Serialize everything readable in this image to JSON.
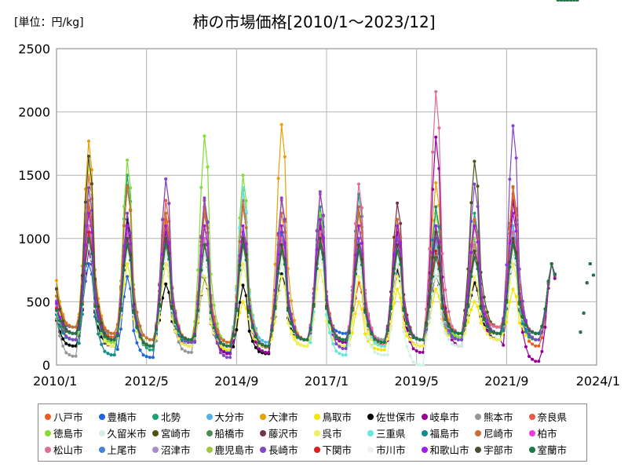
{
  "chart_data": {
    "type": "line",
    "title": "柿の市場価格[2010/1～2023/12]",
    "unit_label": "[単位：円/kg]",
    "ylim": [
      0,
      2500
    ],
    "yticks": [
      0,
      500,
      1000,
      1500,
      2000,
      2500
    ],
    "xlim": [
      "2010/1",
      "2024/1"
    ],
    "xticks": [
      "2010/1",
      "2012/5",
      "2014/9",
      "2017/1",
      "2019/5",
      "2021/9",
      "2024/1"
    ],
    "grid": true,
    "legend_position": "bottom",
    "series": [
      {
        "name": "八戸市",
        "color": "#f05a1e",
        "peaks": [
          1250,
          1420,
          1150,
          1250,
          1000,
          1050,
          1100,
          650,
          800,
          700,
          650,
          1400
        ],
        "troughs": [
          250,
          220,
          150,
          180,
          150,
          140,
          200,
          180,
          160,
          150,
          200,
          250,
          150
        ]
      },
      {
        "name": "豊橋市",
        "color": "#1e64dc",
        "peaks": [
          800,
          700,
          1000,
          900,
          1000,
          1050,
          900,
          1000,
          900,
          800,
          900,
          1100
        ],
        "troughs": [
          300,
          250,
          60,
          200,
          100,
          150,
          200,
          250,
          200,
          200,
          250,
          250,
          200
        ]
      },
      {
        "name": "北勢",
        "color": "#1ea078",
        "peaks": [
          1000,
          1500,
          1100,
          1300,
          1400,
          900,
          1250,
          1100,
          1100,
          1000,
          1200,
          1300
        ],
        "troughs": [
          150,
          80,
          120,
          180,
          150,
          150,
          200,
          200,
          180,
          200,
          250,
          200,
          250
        ]
      },
      {
        "name": "大分市",
        "color": "#50b4e6",
        "peaks": [
          1100,
          1000,
          1000,
          1000,
          1380,
          950,
          1050,
          1000,
          1150,
          900,
          950,
          1100
        ],
        "troughs": [
          250,
          250,
          150,
          200,
          150,
          180,
          200,
          200,
          200,
          200,
          200,
          250,
          250
        ]
      },
      {
        "name": "大津市",
        "color": "#e6a000",
        "peaks": [
          1770,
          1200,
          1470,
          1200,
          1300,
          1900,
          1100,
          900,
          1000,
          1440,
          1000,
          1400
        ],
        "troughs": [
          300,
          250,
          150,
          200,
          150,
          150,
          200,
          200,
          150,
          200,
          250,
          300,
          250
        ]
      },
      {
        "name": "鳥取市",
        "color": "#f0e600",
        "peaks": [
          1000,
          800,
          800,
          900,
          500,
          900,
          900,
          500,
          600,
          600,
          500,
          600
        ],
        "troughs": [
          200,
          180,
          150,
          180,
          120,
          150,
          150,
          150,
          120,
          150,
          200,
          250,
          200
        ]
      },
      {
        "name": "佐世保市",
        "color": "#000000",
        "peaks": [
          960,
          1150,
          640,
          690,
          630,
          720,
          940,
          850,
          750,
          700,
          650,
          980
        ],
        "troughs": [
          150,
          150,
          150,
          200,
          150,
          90,
          200,
          200,
          180,
          200,
          250,
          250,
          250
        ]
      },
      {
        "name": "岐阜市",
        "color": "#960096",
        "peaks": [
          900,
          1000,
          1050,
          1100,
          1000,
          1000,
          1100,
          1000,
          1050,
          1800,
          1000,
          1300
        ],
        "troughs": [
          250,
          200,
          150,
          150,
          90,
          100,
          200,
          180,
          150,
          100,
          150,
          200,
          30
        ]
      },
      {
        "name": "熊本市",
        "color": "#969696",
        "peaks": [
          1200,
          1100,
          1000,
          1100,
          1000,
          900,
          900,
          1000,
          1000,
          800,
          900,
          1000
        ],
        "troughs": [
          70,
          150,
          150,
          100,
          150,
          150,
          200,
          200,
          200,
          200,
          200,
          250,
          250
        ]
      },
      {
        "name": "奈良県",
        "color": "#e65a46",
        "peaks": [
          1500,
          1400,
          1300,
          1300,
          1300,
          1300,
          1350,
          1250,
          1150,
          1100,
          1150,
          1350
        ],
        "troughs": [
          300,
          250,
          200,
          200,
          180,
          150,
          200,
          200,
          180,
          200,
          250,
          300,
          250
        ]
      },
      {
        "name": "徳島市",
        "color": "#82dc32",
        "peaks": [
          1000,
          1620,
          1100,
          1810,
          1500,
          1000,
          1200,
          1100,
          1000,
          1200,
          1000,
          1000
        ],
        "troughs": [
          200,
          180,
          150,
          200,
          180,
          150,
          200,
          200,
          180,
          200,
          220,
          250,
          250
        ]
      },
      {
        "name": "久留米市",
        "color": "#d2f0e6",
        "peaks": [
          1000,
          900,
          900,
          900,
          800,
          800,
          850,
          800,
          800,
          700,
          700,
          800
        ],
        "troughs": [
          200,
          200,
          150,
          180,
          150,
          150,
          200,
          150,
          80,
          0,
          150,
          200,
          200
        ]
      },
      {
        "name": "宮崎市",
        "color": "#505014",
        "peaks": [
          1100,
          1000,
          950,
          900,
          950,
          900,
          1000,
          950,
          900,
          900,
          1610,
          1000
        ],
        "troughs": [
          200,
          200,
          150,
          180,
          150,
          150,
          200,
          200,
          180,
          200,
          250,
          300,
          250
        ]
      },
      {
        "name": "船橋市",
        "color": "#508c50",
        "peaks": [
          1100,
          1000,
          1000,
          1000,
          1000,
          950,
          1050,
          1000,
          1000,
          950,
          900,
          1000
        ],
        "troughs": [
          250,
          200,
          150,
          200,
          150,
          150,
          200,
          200,
          180,
          200,
          250,
          300,
          250
        ]
      },
      {
        "name": "藤沢市",
        "color": "#783246",
        "peaks": [
          1050,
          1000,
          1000,
          950,
          1050,
          950,
          1000,
          950,
          1280,
          950,
          900,
          1000
        ],
        "troughs": [
          250,
          200,
          150,
          200,
          150,
          150,
          200,
          200,
          180,
          200,
          250,
          300,
          250
        ]
      },
      {
        "name": "呉市",
        "color": "#f0f05a",
        "peaks": [
          1580,
          1000,
          800,
          700,
          800,
          700,
          750,
          700,
          700,
          1250,
          700,
          800
        ],
        "troughs": [
          200,
          150,
          150,
          150,
          150,
          150,
          150,
          150,
          150,
          150,
          200,
          200,
          200
        ]
      },
      {
        "name": "三重県",
        "color": "#64e6dc",
        "peaks": [
          1100,
          1050,
          1000,
          1000,
          1400,
          1000,
          1050,
          1000,
          1000,
          950,
          900,
          1000
        ],
        "troughs": [
          250,
          200,
          150,
          180,
          150,
          150,
          200,
          80,
          150,
          200,
          200,
          250,
          250
        ]
      },
      {
        "name": "福島市",
        "color": "#148c8c",
        "peaks": [
          1000,
          1000,
          900,
          900,
          1000,
          950,
          1000,
          1350,
          900,
          1250,
          850,
          900
        ],
        "troughs": [
          200,
          80,
          150,
          180,
          150,
          150,
          200,
          200,
          180,
          200,
          200,
          250,
          200
        ]
      },
      {
        "name": "尼崎市",
        "color": "#c86e32",
        "peaks": [
          1300,
          1400,
          1200,
          1200,
          1250,
          1200,
          1150,
          1200,
          1150,
          1100,
          1150,
          1410
        ],
        "troughs": [
          300,
          250,
          200,
          200,
          180,
          150,
          200,
          200,
          180,
          200,
          250,
          300,
          250
        ]
      },
      {
        "name": "柏市",
        "color": "#f03cdc",
        "peaks": [
          1000,
          950,
          900,
          900,
          950,
          900,
          950,
          900,
          900,
          850,
          850,
          950
        ],
        "troughs": [
          250,
          200,
          150,
          200,
          150,
          150,
          200,
          200,
          180,
          200,
          250,
          250,
          250
        ]
      },
      {
        "name": "松山市",
        "color": "#dc6e96",
        "peaks": [
          1100,
          1050,
          1000,
          1000,
          1050,
          1000,
          1050,
          1430,
          1000,
          2160,
          950,
          1050
        ],
        "troughs": [
          250,
          200,
          150,
          200,
          150,
          150,
          200,
          200,
          180,
          200,
          250,
          300,
          250
        ]
      },
      {
        "name": "上尾市",
        "color": "#4682dc",
        "peaks": [
          950,
          950,
          900,
          900,
          900,
          900,
          950,
          900,
          900,
          850,
          850,
          900
        ],
        "troughs": [
          250,
          200,
          150,
          200,
          150,
          150,
          200,
          200,
          180,
          200,
          250,
          250,
          250
        ]
      },
      {
        "name": "沼津市",
        "color": "#aa8cc8",
        "peaks": [
          1000,
          950,
          950,
          950,
          950,
          900,
          950,
          900,
          900,
          850,
          850,
          950
        ],
        "troughs": [
          250,
          200,
          150,
          200,
          150,
          150,
          200,
          200,
          180,
          200,
          250,
          250,
          250
        ]
      },
      {
        "name": "鹿児島市",
        "color": "#a0c83c",
        "peaks": [
          1000,
          1000,
          950,
          950,
          950,
          900,
          1000,
          950,
          900,
          900,
          850,
          950
        ],
        "troughs": [
          250,
          200,
          150,
          200,
          150,
          150,
          200,
          200,
          180,
          200,
          250,
          250,
          250
        ]
      },
      {
        "name": "長崎市",
        "color": "#8246c8",
        "peaks": [
          1400,
          1200,
          1470,
          1320,
          1050,
          1320,
          1370,
          1000,
          1000,
          1000,
          1430,
          1890
        ],
        "troughs": [
          200,
          200,
          150,
          180,
          60,
          150,
          200,
          130,
          180,
          200,
          200,
          250,
          200
        ]
      },
      {
        "name": "下関市",
        "color": "#dc1e1e",
        "peaks": [
          1050,
          1000,
          1000,
          950,
          1000,
          950,
          1000,
          950,
          950,
          900,
          900,
          1000
        ],
        "troughs": [
          250,
          200,
          150,
          200,
          150,
          150,
          200,
          200,
          180,
          200,
          250,
          250,
          250
        ]
      },
      {
        "name": "市川市",
        "color": "#f0f0f0",
        "peaks": [
          950,
          900,
          900,
          900,
          900,
          850,
          900,
          850,
          850,
          800,
          800,
          900
        ],
        "troughs": [
          250,
          200,
          150,
          200,
          150,
          150,
          200,
          200,
          180,
          200,
          250,
          250,
          250
        ]
      },
      {
        "name": "和歌山市",
        "color": "#a01ee6",
        "peaks": [
          1200,
          1100,
          1100,
          1100,
          1100,
          1100,
          1150,
          1100,
          1100,
          1100,
          1100,
          1200
        ],
        "troughs": [
          250,
          200,
          150,
          200,
          150,
          150,
          200,
          200,
          180,
          200,
          250,
          250,
          250
        ]
      },
      {
        "name": "宇部市",
        "color": "#465032",
        "peaks": [
          1650,
          1000,
          1000,
          950,
          1000,
          950,
          1000,
          950,
          950,
          1050,
          900,
          1000
        ],
        "troughs": [
          250,
          200,
          150,
          200,
          150,
          150,
          200,
          200,
          180,
          200,
          250,
          250,
          250
        ]
      },
      {
        "name": "室蘭市",
        "color": "#1e7846",
        "peaks": [
          1000,
          950,
          950,
          950,
          950,
          900,
          950,
          900,
          900,
          850,
          850,
          950
        ],
        "troughs": [
          250,
          200,
          150,
          200,
          150,
          150,
          200,
          200,
          180,
          200,
          250,
          250,
          250
        ]
      }
    ]
  }
}
